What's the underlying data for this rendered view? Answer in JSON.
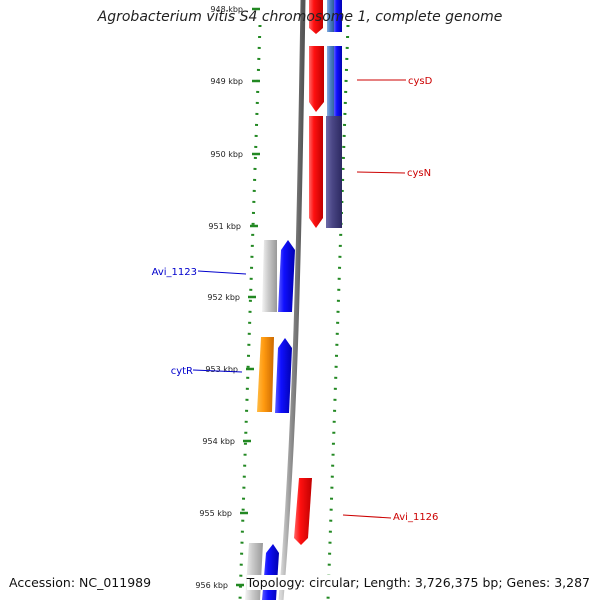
{
  "title": "Agrobacterium vitis S4 chromosome 1, complete genome",
  "accession": "Accession: NC_011989",
  "summary": "Topology: circular; Length: 3,726,375 bp; Genes: 3,287",
  "ruler": {
    "ticks": [
      "948 kbp",
      "949 kbp",
      "950 kbp",
      "951 kbp",
      "952 kbp",
      "953 kbp",
      "954 kbp",
      "955 kbp",
      "956 kbp"
    ]
  },
  "genes": {
    "labels": [
      "cysD",
      "cysN",
      "Avi_1123",
      "cytR",
      "Avi_1126"
    ]
  },
  "colors": {
    "forward_strand": "#ee0000",
    "reverse_strand": "#1111cc",
    "tick": "#228822",
    "backbone": "#888888",
    "reverse_label": "#0000cc",
    "forward_label": "#cc0000"
  }
}
